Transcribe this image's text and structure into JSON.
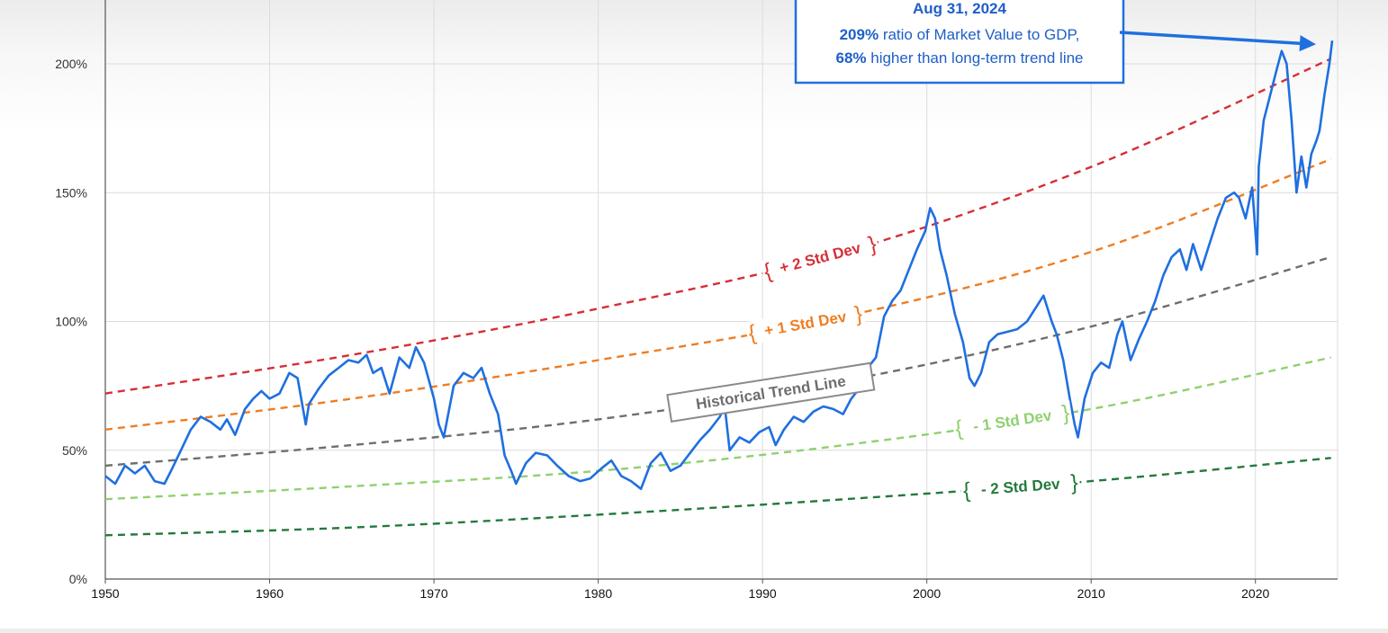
{
  "chart_data": {
    "type": "line",
    "x_range": [
      1950,
      2025
    ],
    "y_range": [
      0,
      220
    ],
    "yticks": [
      0,
      50,
      100,
      150,
      200
    ],
    "ytick_labels": [
      "0%",
      "50%",
      "100%",
      "150%",
      "200%"
    ],
    "xticks": [
      1950,
      1960,
      1970,
      1980,
      1990,
      2000,
      2010,
      2020
    ],
    "xtick_labels": [
      "1950",
      "1960",
      "1970",
      "1980",
      "1990",
      "2000",
      "2010",
      "2020"
    ],
    "grid": true,
    "series": [
      {
        "key": "ratio",
        "color": "#1f6fe0",
        "style": "solid",
        "x": [
          1950.0,
          1950.6,
          1951.2,
          1951.8,
          1952.4,
          1953.0,
          1953.6,
          1954.0,
          1954.6,
          1955.2,
          1955.8,
          1956.4,
          1957.0,
          1957.4,
          1957.9,
          1958.5,
          1959.0,
          1959.5,
          1960.0,
          1960.6,
          1961.2,
          1961.7,
          1962.2,
          1962.4,
          1963.0,
          1963.6,
          1964.2,
          1964.8,
          1965.4,
          1965.9,
          1966.3,
          1966.8,
          1967.3,
          1967.9,
          1968.5,
          1968.9,
          1969.4,
          1970.0,
          1970.3,
          1970.6,
          1971.2,
          1971.8,
          1972.4,
          1972.9,
          1973.4,
          1973.9,
          1974.3,
          1974.7,
          1975.0,
          1975.6,
          1976.2,
          1976.9,
          1977.5,
          1978.2,
          1978.9,
          1979.5,
          1980.2,
          1980.8,
          1981.4,
          1982.0,
          1982.6,
          1983.2,
          1983.8,
          1984.4,
          1985.0,
          1985.6,
          1986.2,
          1986.8,
          1987.4,
          1987.7,
          1988.0,
          1988.6,
          1989.2,
          1989.8,
          1990.4,
          1990.8,
          1991.3,
          1991.9,
          1992.5,
          1993.1,
          1993.7,
          1994.3,
          1994.9,
          1995.4,
          1995.9,
          1996.4,
          1996.9,
          1997.4,
          1997.9,
          1998.4,
          1998.9,
          1999.4,
          1999.9,
          2000.2,
          2000.5,
          2000.8,
          2001.2,
          2001.7,
          2002.2,
          2002.6,
          2002.9,
          2003.3,
          2003.8,
          2004.3,
          2004.9,
          2005.5,
          2006.1,
          2006.6,
          2007.1,
          2007.6,
          2007.9,
          2008.3,
          2008.7,
          2009.0,
          2009.2,
          2009.6,
          2010.1,
          2010.6,
          2011.1,
          2011.6,
          2011.9,
          2012.4,
          2012.9,
          2013.4,
          2013.9,
          2014.4,
          2014.9,
          2015.4,
          2015.8,
          2016.2,
          2016.7,
          2017.2,
          2017.7,
          2018.2,
          2018.7,
          2019.0,
          2019.4,
          2019.8,
          2020.1,
          2020.2,
          2020.5,
          2020.9,
          2021.3,
          2021.6,
          2021.9,
          2022.2,
          2022.5,
          2022.8,
          2023.1,
          2023.4,
          2023.7,
          2023.9,
          2024.2,
          2024.5,
          2024.67
        ],
        "values": [
          40,
          37,
          44,
          41,
          44,
          38,
          37,
          42,
          50,
          58,
          63,
          61,
          58,
          62,
          56,
          66,
          70,
          73,
          70,
          72,
          80,
          78,
          60,
          68,
          74,
          79,
          82,
          85,
          84,
          87,
          80,
          82,
          72,
          86,
          82,
          90,
          84,
          70,
          60,
          55,
          75,
          80,
          78,
          82,
          72,
          64,
          48,
          42,
          37,
          45,
          49,
          48,
          44,
          40,
          38,
          39,
          43,
          46,
          40,
          38,
          35,
          45,
          49,
          42,
          44,
          49,
          54,
          58,
          63,
          67,
          50,
          55,
          53,
          57,
          59,
          52,
          58,
          63,
          61,
          65,
          67,
          66,
          64,
          70,
          74,
          82,
          86,
          102,
          108,
          112,
          120,
          128,
          135,
          144,
          140,
          128,
          118,
          103,
          92,
          78,
          75,
          80,
          92,
          95,
          96,
          97,
          100,
          105,
          110,
          100,
          95,
          85,
          70,
          60,
          55,
          70,
          80,
          84,
          82,
          95,
          100,
          85,
          93,
          100,
          108,
          118,
          125,
          128,
          120,
          130,
          120,
          130,
          140,
          148,
          150,
          148,
          140,
          152,
          126,
          160,
          178,
          188,
          198,
          205,
          200,
          178,
          150,
          164,
          152,
          165,
          170,
          174,
          188,
          200,
          209
        ]
      },
      {
        "key": "plus2",
        "color": "#d62f36",
        "style": "dashed",
        "x": [
          1950,
          1965,
          1980,
          1995,
          2010,
          2024.6
        ],
        "values": [
          72,
          87,
          105,
          127,
          160,
          202
        ]
      },
      {
        "key": "plus1",
        "color": "#ee7d22",
        "style": "dashed",
        "x": [
          1950,
          1965,
          1980,
          1995,
          2010,
          2024.6
        ],
        "values": [
          58,
          70,
          85,
          102,
          127,
          163
        ]
      },
      {
        "key": "trend",
        "color": "#6e6e6e",
        "style": "dashed",
        "x": [
          1950,
          1965,
          1980,
          1995,
          2010,
          2024.6
        ],
        "values": [
          44,
          52,
          62,
          77,
          98,
          125
        ]
      },
      {
        "key": "minus1",
        "color": "#8fd16e",
        "style": "dashed",
        "x": [
          1950,
          1965,
          1980,
          1995,
          2010,
          2024.6
        ],
        "values": [
          31,
          36,
          42,
          52,
          66,
          86
        ]
      },
      {
        "key": "minus2",
        "color": "#237a3c",
        "style": "dashed",
        "x": [
          1950,
          1965,
          1980,
          1995,
          2010,
          2024.6
        ],
        "values": [
          17,
          20,
          25,
          31,
          38,
          47
        ]
      }
    ],
    "band_labels": [
      {
        "series": "plus2",
        "text": "+ 2 Std Dev",
        "at_x": 1993.5
      },
      {
        "series": "plus1",
        "text": "+ 1 Std Dev",
        "at_x": 1992.6
      },
      {
        "series": "trend",
        "text": "Historical Trend Line",
        "at_x": 1990.5
      },
      {
        "series": "minus1",
        "text": "- 1 Std Dev",
        "at_x": 2005.2
      },
      {
        "series": "minus2",
        "text": "- 2 Std Dev",
        "at_x": 2005.7
      }
    ],
    "annotation": {
      "date": "Aug 31, 2024",
      "value_bold": "209%",
      "line1_rest": "ratio of Market Value to GDP,",
      "pct_bold": "68%",
      "line2_rest": "higher than long-term trend line",
      "target_x": 2024.67,
      "target_y": 209
    }
  },
  "colors": {
    "grid": "#dcdcdc",
    "axis": "#555555",
    "label_box_border": "#8a8a8a",
    "annotation_border": "#1f6fe0",
    "annotation_text": "#1f5fc8"
  }
}
